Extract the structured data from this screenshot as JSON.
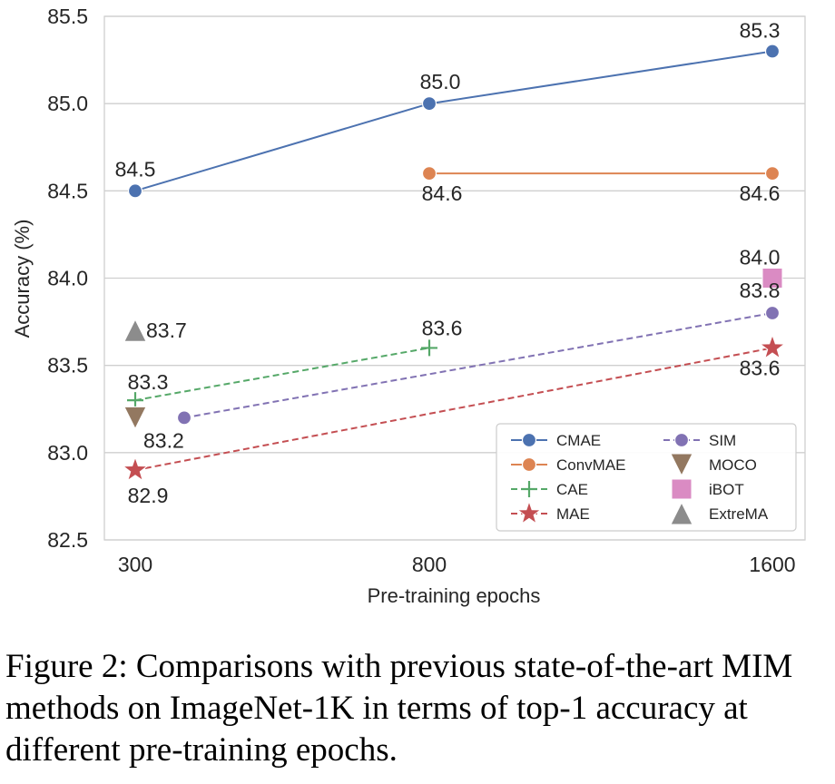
{
  "chart_data": {
    "type": "line",
    "xlabel": "Pre-training epochs",
    "ylabel": "Accuracy (%)",
    "ylim": [
      82.5,
      85.5
    ],
    "yticks": [
      "82.5",
      "83.0",
      "83.5",
      "84.0",
      "84.5",
      "85.0",
      "85.5"
    ],
    "xticks": [
      "300",
      "800",
      "1600"
    ],
    "grid": "horizontal",
    "legend_position": "bottom-right",
    "series": [
      {
        "name": "CMAE",
        "color": "#4C72B0",
        "marker": "circle",
        "linestyle": "solid",
        "points": [
          {
            "x": 300,
            "y": 84.5,
            "label": "84.5"
          },
          {
            "x": 800,
            "y": 85.0,
            "label": "85.0"
          },
          {
            "x": 1600,
            "y": 85.3,
            "label": "85.3"
          }
        ]
      },
      {
        "name": "ConvMAE",
        "color": "#DD8452",
        "marker": "circle",
        "linestyle": "solid",
        "points": [
          {
            "x": 800,
            "y": 84.6,
            "label": "84.6"
          },
          {
            "x": 1600,
            "y": 84.6,
            "label": "84.6"
          }
        ]
      },
      {
        "name": "CAE",
        "color": "#55A868",
        "marker": "plus",
        "linestyle": "dashed",
        "points": [
          {
            "x": 300,
            "y": 83.3,
            "label": "83.3"
          },
          {
            "x": 800,
            "y": 83.6,
            "label": "83.6"
          }
        ]
      },
      {
        "name": "MAE",
        "color": "#C44E52",
        "marker": "star",
        "linestyle": "dashed",
        "points": [
          {
            "x": 300,
            "y": 82.9,
            "label": "82.9"
          },
          {
            "x": 1600,
            "y": 83.6,
            "label": "83.6"
          }
        ]
      },
      {
        "name": "SIM",
        "color": "#8172B3",
        "marker": "circle",
        "linestyle": "dashed",
        "points": [
          {
            "x": 400,
            "y": 83.2,
            "label": ""
          },
          {
            "x": 1600,
            "y": 83.8,
            "label": "83.8"
          }
        ]
      },
      {
        "name": "MOCO",
        "color": "#937860",
        "marker": "triangle-down",
        "linestyle": "none",
        "points": [
          {
            "x": 300,
            "y": 83.2,
            "label": "83.2"
          }
        ]
      },
      {
        "name": "iBOT",
        "color": "#DA8BC3",
        "marker": "square",
        "linestyle": "none",
        "points": [
          {
            "x": 1600,
            "y": 84.0,
            "label": "84.0"
          }
        ]
      },
      {
        "name": "ExtreMA",
        "color": "#8C8C8C",
        "marker": "triangle-up",
        "linestyle": "none",
        "points": [
          {
            "x": 300,
            "y": 83.7,
            "label": "83.7"
          }
        ]
      }
    ]
  },
  "caption": "Figure 2: Comparisons with previous state-of-the-art MIM methods on ImageNet-1K in terms of top-1 accuracy at different pre-training epochs."
}
